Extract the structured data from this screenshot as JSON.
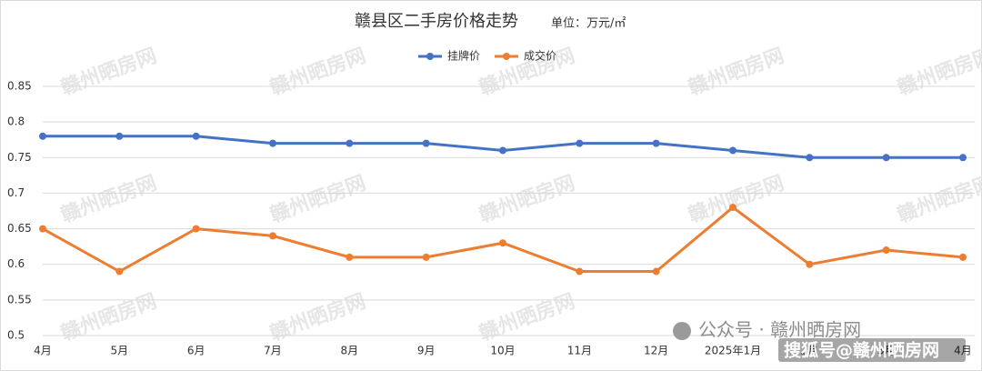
{
  "chart_data": {
    "type": "line",
    "title": "赣县区二手房价格走势",
    "subtitle": "单位：万元/㎡",
    "categories": [
      "4月",
      "5月",
      "6月",
      "7月",
      "8月",
      "9月",
      "10月",
      "11月",
      "12月",
      "2025年1月",
      "2月",
      "3月",
      "4月"
    ],
    "series": [
      {
        "name": "挂牌价",
        "color": "#4472c4",
        "values": [
          0.78,
          0.78,
          0.78,
          0.77,
          0.77,
          0.77,
          0.76,
          0.77,
          0.77,
          0.76,
          0.75,
          0.75,
          0.75
        ]
      },
      {
        "name": "成交价",
        "color": "#ed7d31",
        "values": [
          0.65,
          0.59,
          0.65,
          0.64,
          0.61,
          0.61,
          0.63,
          0.59,
          0.59,
          0.68,
          0.6,
          0.62,
          0.61
        ]
      }
    ],
    "ylim": [
      0.5,
      0.85
    ],
    "yticks": [
      0.5,
      0.55,
      0.6,
      0.65,
      0.7,
      0.75,
      0.8,
      0.85
    ],
    "grid": true,
    "legend": "top",
    "watermark": "赣州晒房网",
    "annotations": [
      "公众号 · 赣州晒房网",
      "搜狐号@赣州晒房网"
    ]
  }
}
